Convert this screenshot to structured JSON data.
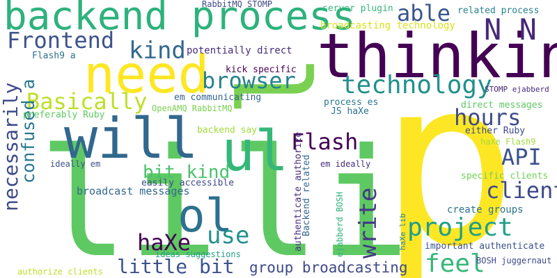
{
  "words": [
    {
      "text": "p",
      "color": "#fde725"
    },
    {
      "text": "li",
      "color": "#5ec962"
    },
    {
      "text": "li",
      "color": "#5ec962"
    },
    {
      "text": "thinking",
      "color": "#440154"
    },
    {
      "text": "l",
      "color": "#7ad151"
    },
    {
      "text": "backend process",
      "color": "#2db27d"
    },
    {
      "text": "need",
      "color": "#fde725"
    },
    {
      "text": "will",
      "color": "#31688e"
    },
    {
      "text": "ul",
      "color": "#35b779"
    },
    {
      "text": "ol",
      "color": "#2c728e"
    },
    {
      "text": "Frontend",
      "color": "#3b528b"
    },
    {
      "text": "kind",
      "color": "#31688e"
    },
    {
      "text": "able",
      "color": "#39568c"
    },
    {
      "text": "N N",
      "color": "#482878"
    },
    {
      "text": "technology",
      "color": "#21918c"
    },
    {
      "text": "browser",
      "color": "#26828e"
    },
    {
      "text": "Basically",
      "color": "#bddf26"
    },
    {
      "text": "hours",
      "color": "#3e4a89"
    },
    {
      "text": "necessarily",
      "color": "#3e4a89"
    },
    {
      "text": "confused a",
      "color": "#2a788e"
    },
    {
      "text": "Flash",
      "color": "#440154"
    },
    {
      "text": "API",
      "color": "#3b528b"
    },
    {
      "text": "client",
      "color": "#3e4989"
    },
    {
      "text": "bit kind",
      "color": "#4ac16d"
    },
    {
      "text": "write",
      "color": "#443983"
    },
    {
      "text": "project",
      "color": "#1f9e89"
    },
    {
      "text": "use",
      "color": "#21918c"
    },
    {
      "text": "haXe",
      "color": "#440154"
    },
    {
      "text": "feel",
      "color": "#35b779"
    },
    {
      "text": "little bit",
      "color": "#3b528b"
    },
    {
      "text": "group broadcasting",
      "color": "#3e4989"
    },
    {
      "text": "broadcast messages",
      "color": "#31688e"
    },
    {
      "text": "RabbitMQ STOMP",
      "color": "#3e4a89"
    },
    {
      "text": "server plugin",
      "color": "#35b779"
    },
    {
      "text": "related process",
      "color": "#26828e"
    },
    {
      "text": "broadcasting technology",
      "color": "#d8e219"
    },
    {
      "text": "potentially direct",
      "color": "#472d7b"
    },
    {
      "text": "Flash9 a",
      "color": "#2c728e"
    },
    {
      "text": "kick specific",
      "color": "#440154"
    },
    {
      "text": "em communicating",
      "color": "#33638d"
    },
    {
      "text": "OpenAMQ RabbitMQ",
      "color": "#7ad151"
    },
    {
      "text": "preferably Ruby",
      "color": "#5ec962"
    },
    {
      "text": "process es",
      "color": "#2a788e"
    },
    {
      "text": "JS haXe",
      "color": "#2c728e"
    },
    {
      "text": "STOMP ejabberd",
      "color": "#482878"
    },
    {
      "text": "direct messages",
      "color": "#5ec962"
    },
    {
      "text": "backend say",
      "color": "#a0da39"
    },
    {
      "text": "either Ruby",
      "color": "#3e4989"
    },
    {
      "text": "haXe Flash9",
      "color": "#a0da39"
    },
    {
      "text": "ideally em",
      "color": "#3b528b"
    },
    {
      "text": "em ideally",
      "color": "#472d7b"
    },
    {
      "text": "specific clients",
      "color": "#73d056"
    },
    {
      "text": "easily accessible",
      "color": "#3e4a89"
    },
    {
      "text": "authenticate authorize",
      "color": "#472d7b"
    },
    {
      "text": "Backend related",
      "color": "#31688e"
    },
    {
      "text": "ejabberd BOSH",
      "color": "#2db27d"
    },
    {
      "text": "create groups",
      "color": "#2c728e"
    },
    {
      "text": "haXe lib",
      "color": "#26828e"
    },
    {
      "text": "important authenticate",
      "color": "#3b528b"
    },
    {
      "text": "ideas suggestions",
      "color": "#1f9e89"
    },
    {
      "text": "BOSH juggernaut",
      "color": "#3e4989"
    },
    {
      "text": "authorize clients",
      "color": "#bddf26"
    }
  ]
}
